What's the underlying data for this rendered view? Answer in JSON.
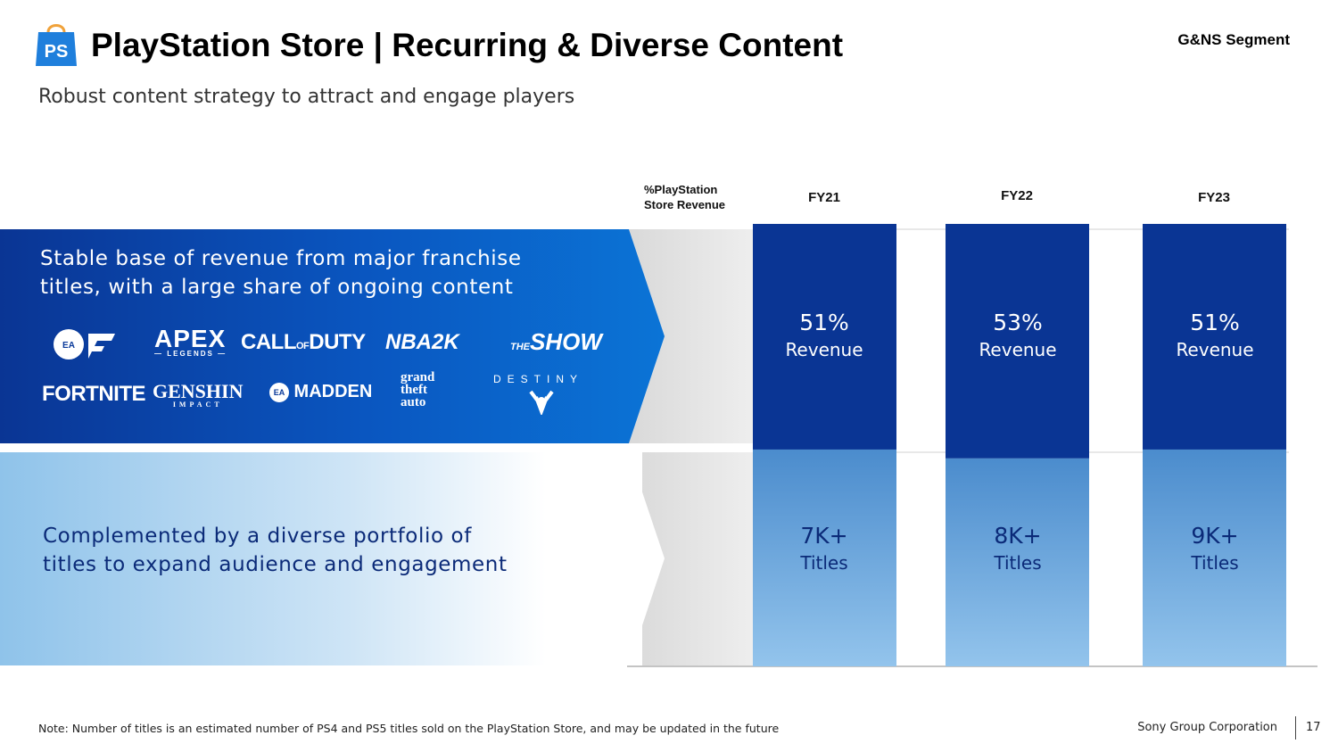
{
  "header": {
    "title": "PlayStation Store | Recurring & Diverse Content",
    "segment": "G&NS Segment",
    "subtitle": "Robust content strategy to attract and engage players"
  },
  "left": {
    "top_text_line1": "Stable base of revenue from major franchise",
    "top_text_line2": "titles, with a large share of ongoing content",
    "bottom_text_line1": "Complemented by a diverse portfolio of",
    "bottom_text_line2": "titles to expand audience and engagement",
    "logos": [
      "EA SPORTS FC",
      "APEX LEGENDS",
      "CALL OF DUTY",
      "NBA 2K",
      "MLB THE SHOW",
      "FORTNITE",
      "GENSHIN IMPACT",
      "EA SPORTS MADDEN NFL",
      "GRAND THEFT AUTO",
      "DESTINY"
    ]
  },
  "chart_data": {
    "type": "bar",
    "metric_label_line1": "%PlayStation",
    "metric_label_line2": "Store Revenue",
    "categories": [
      "FY21",
      "FY22",
      "FY23"
    ],
    "revenue_share": [
      51,
      53,
      51
    ],
    "revenue_labels": [
      "51%",
      "53%",
      "51%"
    ],
    "revenue_word": "Revenue",
    "title_counts": [
      "7K+",
      "8K+",
      "9K+"
    ],
    "titles_word": "Titles"
  },
  "footer": {
    "note": "Note: Number of titles is an estimated number of PS4 and PS5 titles sold on the PlayStation Store, and may be updated in the future",
    "company": "Sony Group Corporation",
    "page": "17"
  },
  "colors": {
    "dark_blue": "#0a3594",
    "mid_blue": "#0b6fd4",
    "light_blue_top": "#4d8fcf",
    "light_blue_bottom": "#8fc1ea"
  }
}
